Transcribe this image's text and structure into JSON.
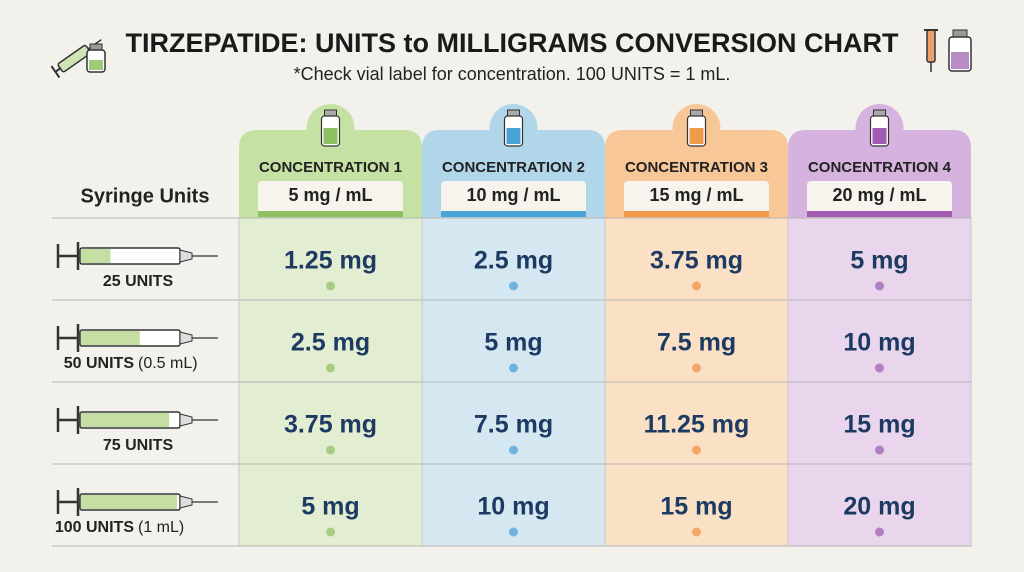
{
  "header": {
    "title": "TIRZEPATIDE: UNITS to MILLIGRAMS CONVERSION CHART",
    "subtitle": "*Check vial label for concentration. 100 UNITS = 1 mL."
  },
  "table": {
    "row_header": "Syringe Units",
    "columns": [
      {
        "label": "CONCENTRATION 1",
        "value": "5 mg / mL"
      },
      {
        "label": "CONCENTRATION 2",
        "value": "10 mg / mL"
      },
      {
        "label": "CONCENTRATION 3",
        "value": "15 mg / mL"
      },
      {
        "label": "CONCENTRATION 4",
        "value": "20 mg / mL"
      }
    ],
    "rows": [
      {
        "units": "25 UNITS",
        "cells": [
          "1.25 mg",
          "2.5 mg",
          "3.75 mg",
          "5 mg"
        ]
      },
      {
        "units": "50 UNITS",
        "volume": "(0.5 mL)",
        "cells": [
          "2.5 mg",
          "5 mg",
          "7.5 mg",
          "10 mg"
        ]
      },
      {
        "units": "75 UNITS",
        "cells": [
          "3.75 mg",
          "7.5 mg",
          "11.25 mg",
          "15 mg"
        ]
      },
      {
        "units": "100 UNITS",
        "volume": "(1 mL)",
        "cells": [
          "5 mg",
          "10 mg",
          "15 mg",
          "20 mg"
        ]
      }
    ]
  }
}
